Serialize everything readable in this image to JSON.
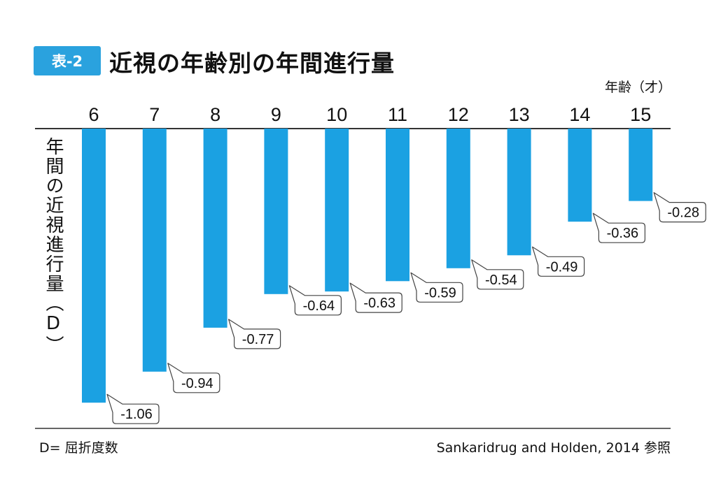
{
  "header": {
    "badge": "表-2",
    "title": "近視の年齢別の年間進行量"
  },
  "footer": {
    "unit_note": "D= 屈折度数",
    "source": "Sankaridrug and Holden, 2014 参照"
  },
  "colors": {
    "bar": "#1ba1e2",
    "badge": "#2aa2de",
    "axis": "#333333"
  },
  "chart_data": {
    "type": "bar",
    "title": "近視の年齢別の年間進行量",
    "xlabel": "年齢（才）",
    "ylabel": "年間の近視進行量（D）",
    "categories": [
      "6",
      "7",
      "8",
      "9",
      "10",
      "11",
      "12",
      "13",
      "14",
      "15"
    ],
    "values": [
      -1.06,
      -0.94,
      -0.77,
      -0.64,
      -0.63,
      -0.59,
      -0.54,
      -0.49,
      -0.36,
      -0.28
    ],
    "data_labels": [
      "-1.06",
      "-0.94",
      "-0.77",
      "-0.64",
      "-0.63",
      "-0.59",
      "-0.54",
      "-0.49",
      "-0.36",
      "-0.28"
    ],
    "ylim": [
      -1.1,
      0
    ],
    "x_axis_position": "top",
    "grid": false,
    "legend": "none"
  }
}
